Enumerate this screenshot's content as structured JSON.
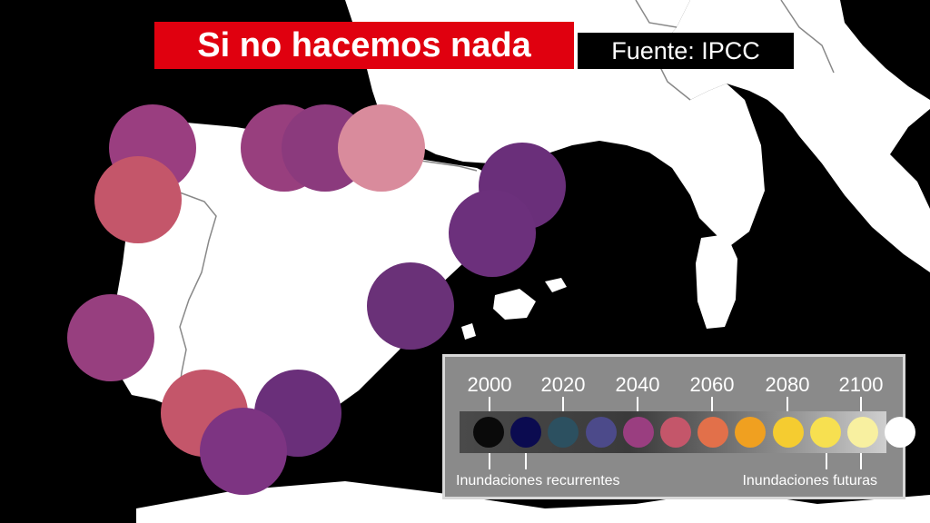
{
  "title": "Si no hacemos nada",
  "source": "Fuente: IPCC",
  "colors": {
    "land": "#ffffff",
    "sea": "#000000",
    "title_bg": "#e0000f",
    "border": "#888888"
  },
  "markers": [
    {
      "name": "galicia-north",
      "color": "#9a3e80"
    },
    {
      "name": "galicia-coast",
      "color": "#c4566a"
    },
    {
      "name": "asturias",
      "color": "#983f7e"
    },
    {
      "name": "cantabria",
      "color": "#8b3a7d"
    },
    {
      "name": "basque-country",
      "color": "#d98b9c"
    },
    {
      "name": "girona",
      "color": "#6a2f7a"
    },
    {
      "name": "barcelona",
      "color": "#6c307c"
    },
    {
      "name": "valencia",
      "color": "#6a3178"
    },
    {
      "name": "algarve",
      "color": "#973f7f"
    },
    {
      "name": "huelva",
      "color": "#c4566a"
    },
    {
      "name": "malaga",
      "color": "#6a2f7a"
    },
    {
      "name": "cadiz",
      "color": "#7d3482"
    }
  ],
  "legend": {
    "year_labels": [
      "2000",
      "2020",
      "2040",
      "2060",
      "2080",
      "2100"
    ],
    "swatches": [
      "#0a0a0a",
      "#0b0b50",
      "#2c5060",
      "#4c4a8a",
      "#9a3e80",
      "#c4566a",
      "#e2704a",
      "#f0a020",
      "#f5cc30",
      "#f7e050",
      "#f8f0a0",
      "#ffffff"
    ],
    "note_left": "Inundaciones recurrentes",
    "note_right": "Inundaciones futuras"
  }
}
